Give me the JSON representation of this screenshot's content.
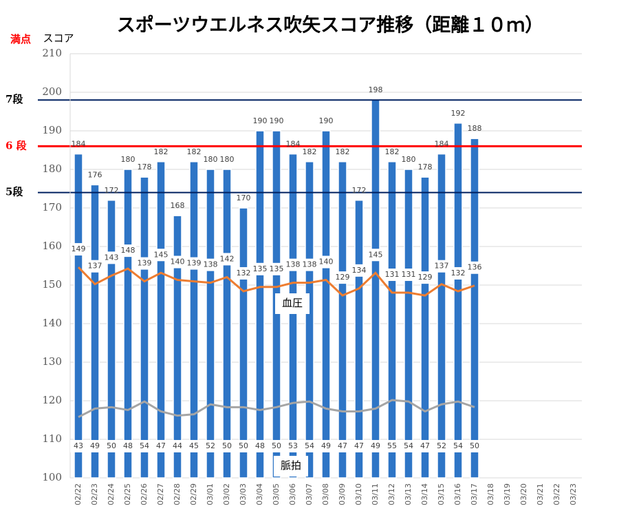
{
  "chart_data": {
    "type": "bar",
    "title": "スポーツウエルネス吹矢スコア推移（距離１０ｍ）",
    "y_label": "スコア",
    "top_note": "満点",
    "categories": [
      "02/22",
      "02/23",
      "02/24",
      "02/25",
      "02/26",
      "02/27",
      "02/28",
      "02/29",
      "03/01",
      "03/02",
      "03/03",
      "03/04",
      "03/05",
      "03/06",
      "03/07",
      "03/08",
      "03/09",
      "03/10",
      "03/11",
      "03/12",
      "03/13",
      "03/14",
      "03/15",
      "03/16",
      "03/17",
      "03/18",
      "03/19",
      "03/20",
      "03/21",
      "03/22",
      "03/23"
    ],
    "series": [
      {
        "name": "スコア",
        "type": "bar",
        "color": "#2e75c6",
        "values": [
          184,
          176,
          172,
          180,
          178,
          182,
          168,
          182,
          180,
          180,
          170,
          190,
          190,
          184,
          182,
          190,
          182,
          172,
          198,
          182,
          180,
          178,
          184,
          192,
          188,
          null,
          null,
          null,
          null,
          null,
          null
        ]
      },
      {
        "name": "血圧",
        "type": "line",
        "axis": "y2",
        "color": "#ed7d31",
        "values": [
          149,
          137,
          143,
          148,
          139,
          145,
          140,
          139,
          138,
          142,
          132,
          135,
          135,
          138,
          138,
          140,
          129,
          134,
          145,
          131,
          131,
          129,
          137,
          132,
          136,
          null,
          null,
          null,
          null,
          null,
          null
        ]
      },
      {
        "name": "脈拍",
        "type": "line",
        "axis": "y2",
        "color": "#a5a5a5",
        "values": [
          43,
          49,
          50,
          48,
          54,
          47,
          44,
          45,
          52,
          50,
          50,
          48,
          50,
          53,
          54,
          49,
          47,
          47,
          49,
          55,
          54,
          47,
          52,
          54,
          50,
          null,
          null,
          null,
          null,
          null,
          null
        ]
      }
    ],
    "ylim": [
      100,
      210
    ],
    "yticks": [
      100,
      110,
      120,
      130,
      140,
      150,
      160,
      170,
      180,
      190,
      200,
      210
    ],
    "y2lim": [
      0,
      300
    ],
    "grid": true,
    "reference_lines": [
      {
        "label": "7段",
        "value": 198,
        "color": "#002060"
      },
      {
        "label": "6 段",
        "value": 186,
        "color": "#ff0000"
      },
      {
        "label": "5段",
        "value": 174,
        "color": "#002060"
      }
    ]
  }
}
